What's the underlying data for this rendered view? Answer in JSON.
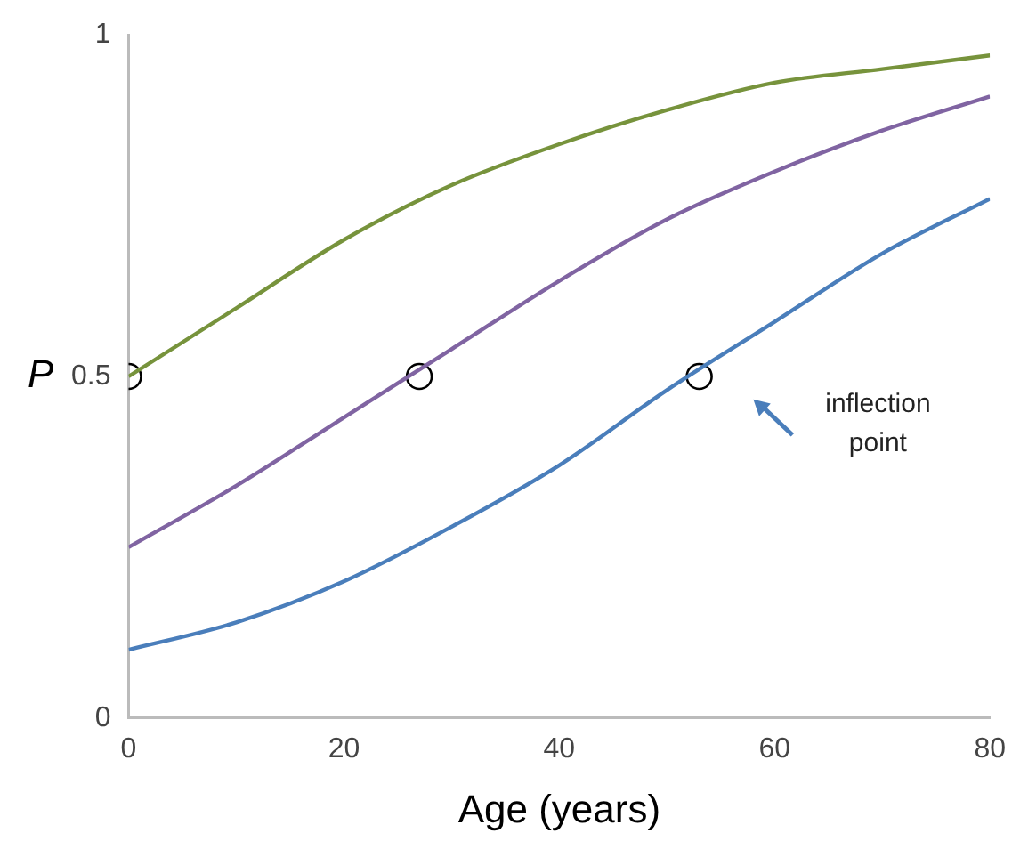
{
  "chart_data": {
    "type": "line",
    "xlabel": "Age (years)",
    "ylabel": "P",
    "xlim": [
      0,
      80
    ],
    "xticks": [
      0,
      20,
      40,
      60,
      80
    ],
    "ylim": [
      0,
      1
    ],
    "yticks": [
      0,
      0.5,
      1
    ],
    "grid": false,
    "legend": false,
    "x": [
      0,
      10,
      20,
      30,
      40,
      50,
      60,
      70,
      80
    ],
    "series": [
      {
        "color": "#77933c",
        "values": [
          0.5,
          0.6,
          0.7,
          0.78,
          0.84,
          0.89,
          0.93,
          0.95,
          0.97
        ]
      },
      {
        "color": "#8064a2",
        "values": [
          0.25,
          0.34,
          0.44,
          0.54,
          0.64,
          0.73,
          0.8,
          0.86,
          0.91
        ]
      },
      {
        "color": "#4a7ebb",
        "values": [
          0.1,
          0.14,
          0.2,
          0.28,
          0.37,
          0.48,
          0.58,
          0.68,
          0.76
        ]
      },
      {
        "type": "scatter",
        "color": "#000000",
        "marker": "circle",
        "x": [
          0,
          27,
          53
        ],
        "values": [
          0.5,
          0.5,
          0.5
        ]
      }
    ],
    "annotations": [
      "inflection point"
    ]
  }
}
